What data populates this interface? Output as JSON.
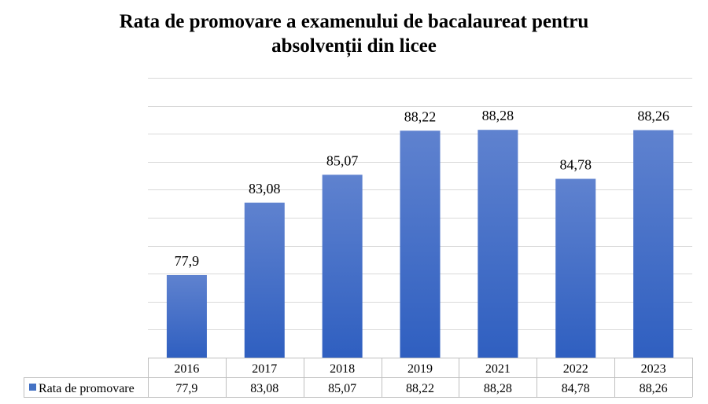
{
  "chart_data": {
    "type": "bar",
    "title_line1": "Rata de promovare a examenului de bacalaureat pentru",
    "title_line2": "absolvenții din licee",
    "categories": [
      "2016",
      "2017",
      "2018",
      "2019",
      "2021",
      "2022",
      "2023"
    ],
    "series": [
      {
        "name": "Rata de promovare",
        "values": [
          77.9,
          83.08,
          85.07,
          88.22,
          88.28,
          84.78,
          88.26
        ],
        "labels": [
          "77,9",
          "83,08",
          "85,07",
          "88,22",
          "88,28",
          "84,78",
          "88,26"
        ],
        "color_top": "#5f82cf",
        "color_bottom": "#2f5fc0",
        "legend_color": "#4472c4"
      }
    ],
    "ylim": [
      72,
      92
    ],
    "grid": true,
    "y_tick_labels": false,
    "data_table": true,
    "legend": "data-table"
  }
}
